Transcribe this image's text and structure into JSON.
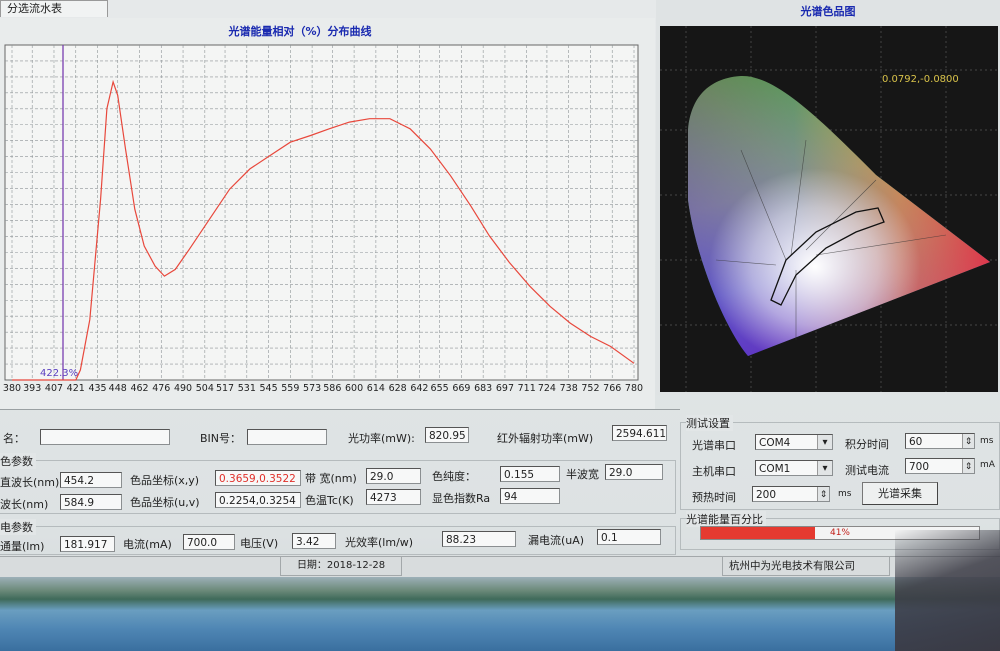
{
  "tab": "分选流水表",
  "chart_data": {
    "type": "line",
    "title": "光谱能量相对（%）分布曲线",
    "x": [
      380,
      421,
      424,
      430,
      437,
      441,
      445,
      448,
      453,
      459,
      465,
      472,
      478,
      485,
      494,
      507,
      520,
      533,
      546,
      559,
      572,
      584,
      597,
      610,
      623,
      636,
      649,
      662,
      675,
      687,
      700,
      713,
      726,
      739,
      752,
      765,
      780
    ],
    "values": [
      0,
      0,
      3,
      18,
      54,
      81,
      89,
      85,
      69,
      51,
      40,
      34,
      31,
      33,
      39,
      48,
      57,
      63,
      67,
      71,
      73,
      75,
      77,
      78,
      78,
      75,
      69,
      61,
      52,
      43,
      35,
      28,
      22,
      17,
      13,
      10,
      5
    ],
    "color": "#e8483c",
    "xlim": [
      380,
      780
    ],
    "xticks": [
      380,
      393,
      407,
      421,
      435,
      448,
      462,
      476,
      490,
      504,
      517,
      531,
      545,
      559,
      573,
      586,
      600,
      614,
      628,
      642,
      655,
      669,
      683,
      697,
      711,
      724,
      738,
      752,
      766,
      780
    ],
    "ylim": [
      0,
      100
    ],
    "grid": true,
    "annotation": "422.3%"
  },
  "color_chart": {
    "title": "光谱色品图",
    "coordinate": "0.0792,-0.0800"
  },
  "form": {
    "row1": [
      {
        "label": "名：",
        "value": ""
      },
      {
        "label": "BIN号：",
        "value": ""
      },
      {
        "label": "光功率(mW):",
        "value": "820.95"
      },
      {
        "label": "红外辐射功率(mW)",
        "value": "2594.611"
      }
    ],
    "color_group": "色参数",
    "row2": [
      {
        "label": "直波长(nm)",
        "value": "454.2"
      },
      {
        "label": "色品坐标(x,y)",
        "value": "0.3659,0.3522"
      },
      {
        "label": "带  宽(nm)",
        "value": "29.0"
      },
      {
        "label": "色纯度：",
        "value": "0.155"
      },
      {
        "label": "半波宽",
        "value": "29.0"
      }
    ],
    "row3": [
      {
        "label": "波长(nm)",
        "value": "584.9"
      },
      {
        "label": "色品坐标(u,v)",
        "value": "0.2254,0.3254"
      },
      {
        "label": "色温Tc(K)",
        "value": "4273"
      },
      {
        "label": "显色指数Ra",
        "value": "94"
      }
    ],
    "electric_group": "电参数",
    "row4": [
      {
        "label": "通量(lm)",
        "value": "181.917"
      },
      {
        "label": "电流(mA)",
        "value": "700.0"
      },
      {
        "label": "电压(V)",
        "value": "3.42"
      },
      {
        "label": "光效率(lm/w)",
        "value": "88.23"
      },
      {
        "label": "漏电流(uA)",
        "value": "0.1"
      }
    ]
  },
  "settings": {
    "title": "测试设置",
    "spectrum_port": {
      "label": "光谱串口",
      "value": "COM4"
    },
    "integration_time": {
      "label": "积分时间",
      "value": "60",
      "unit": "ms"
    },
    "host_port": {
      "label": "主机串口",
      "value": "COM1"
    },
    "test_current": {
      "label": "测试电流",
      "value": "700",
      "unit": "mA"
    },
    "preheat_time": {
      "label": "预热时间",
      "value": "200",
      "unit": "ms"
    },
    "button": "光谱采集",
    "progress_title": "光谱能量百分比",
    "progress": {
      "value": 41,
      "label": "41%"
    }
  },
  "status": {
    "date": "日期：2018-12-28",
    "company": "杭州中为光电技术有限公司"
  }
}
